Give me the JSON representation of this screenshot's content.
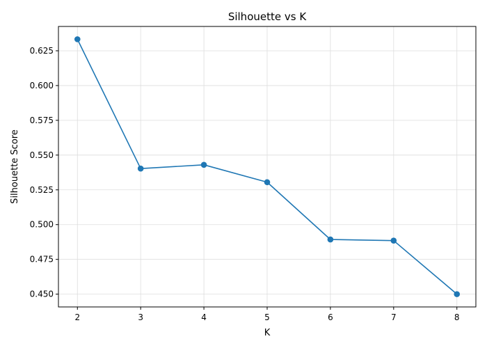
{
  "chart_data": {
    "type": "line",
    "title": "Silhouette vs K",
    "xlabel": "K",
    "ylabel": "Silhouette Score",
    "x": [
      2,
      3,
      4,
      5,
      6,
      7,
      8
    ],
    "series": [
      {
        "values": [
          0.6333,
          0.5403,
          0.543,
          0.5305,
          0.4893,
          0.4885,
          0.45
        ],
        "color": "#1f77b4",
        "marker": "circle"
      }
    ],
    "xlim": [
      1.7,
      8.3
    ],
    "ylim": [
      0.4408,
      0.6425
    ],
    "xticks": [
      2,
      3,
      4,
      5,
      6,
      7,
      8
    ],
    "xtick_labels": [
      "2",
      "3",
      "4",
      "5",
      "6",
      "7",
      "8"
    ],
    "yticks": [
      0.45,
      0.475,
      0.5,
      0.525,
      0.55,
      0.575,
      0.6,
      0.625
    ],
    "ytick_labels": [
      "0.450",
      "0.475",
      "0.500",
      "0.525",
      "0.550",
      "0.575",
      "0.600",
      "0.625"
    ],
    "grid": true
  }
}
